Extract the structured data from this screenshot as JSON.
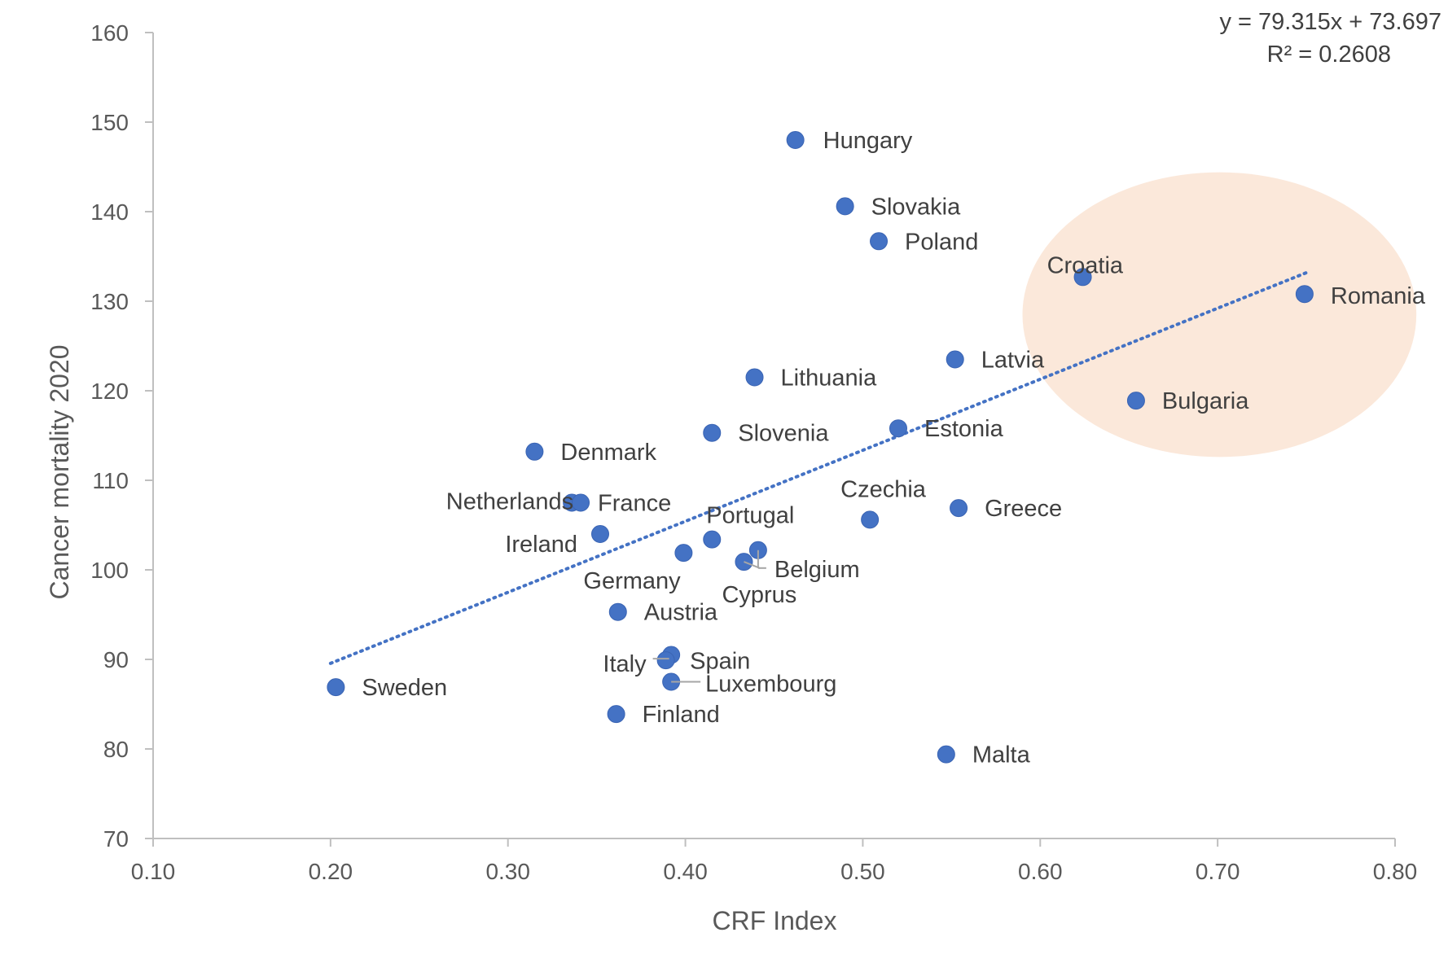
{
  "chart_data": {
    "type": "scatter",
    "title": "",
    "xlabel": "CRF Index",
    "ylabel": "Cancer mortality 2020",
    "xlim": [
      0.1,
      0.8
    ],
    "ylim": [
      70,
      160
    ],
    "x_ticks": [
      "0.10",
      "0.20",
      "0.30",
      "0.40",
      "0.50",
      "0.60",
      "0.70",
      "0.80"
    ],
    "y_ticks": [
      "70",
      "80",
      "90",
      "100",
      "110",
      "120",
      "130",
      "140",
      "150",
      "160"
    ],
    "grid": false,
    "series": [
      {
        "name": "Countries",
        "color": "#4472c4",
        "points": [
          {
            "label": "Hungary",
            "x": 0.462,
            "y": 148.0
          },
          {
            "label": "Slovakia",
            "x": 0.49,
            "y": 140.6
          },
          {
            "label": "Poland",
            "x": 0.509,
            "y": 136.7
          },
          {
            "label": "Croatia",
            "x": 0.624,
            "y": 132.7
          },
          {
            "label": "Romania",
            "x": 0.749,
            "y": 130.8
          },
          {
            "label": "Latvia",
            "x": 0.552,
            "y": 123.5
          },
          {
            "label": "Lithuania",
            "x": 0.439,
            "y": 121.5
          },
          {
            "label": "Bulgaria",
            "x": 0.654,
            "y": 118.9
          },
          {
            "label": "Estonia",
            "x": 0.52,
            "y": 115.8
          },
          {
            "label": "Slovenia",
            "x": 0.415,
            "y": 115.3
          },
          {
            "label": "Denmark",
            "x": 0.315,
            "y": 113.2
          },
          {
            "label": "Netherlands",
            "x": 0.336,
            "y": 107.5
          },
          {
            "label": "France",
            "x": 0.341,
            "y": 107.5
          },
          {
            "label": "Greece",
            "x": 0.554,
            "y": 106.9
          },
          {
            "label": "Czechia",
            "x": 0.504,
            "y": 105.6
          },
          {
            "label": "Ireland",
            "x": 0.352,
            "y": 104.0
          },
          {
            "label": "Portugal",
            "x": 0.415,
            "y": 103.4
          },
          {
            "label": "Belgium",
            "x": 0.441,
            "y": 102.2
          },
          {
            "label": "Germany",
            "x": 0.399,
            "y": 101.9
          },
          {
            "label": "Cyprus",
            "x": 0.433,
            "y": 100.9
          },
          {
            "label": "Austria",
            "x": 0.362,
            "y": 95.3
          },
          {
            "label": "Spain",
            "x": 0.392,
            "y": 90.5
          },
          {
            "label": "Italy",
            "x": 0.389,
            "y": 89.9
          },
          {
            "label": "Luxembourg",
            "x": 0.392,
            "y": 87.5
          },
          {
            "label": "Sweden",
            "x": 0.203,
            "y": 86.9
          },
          {
            "label": "Finland",
            "x": 0.361,
            "y": 83.9
          },
          {
            "label": "Malta",
            "x": 0.547,
            "y": 79.4
          }
        ]
      }
    ],
    "trendline": {
      "type": "linear",
      "slope": 79.315,
      "intercept": 73.697,
      "x_range": [
        0.2,
        0.75
      ],
      "equation": "y = 79.315x + 73.697",
      "r_squared": "R² = 0.2608",
      "color": "#4472c4"
    },
    "highlight": {
      "description": "ellipse around Croatia, Romania, Bulgaria",
      "center": {
        "x": 0.701,
        "y": 128.5
      },
      "x_radius": 0.111,
      "y_radius": 15.9,
      "color": "#fbe5d6"
    }
  }
}
